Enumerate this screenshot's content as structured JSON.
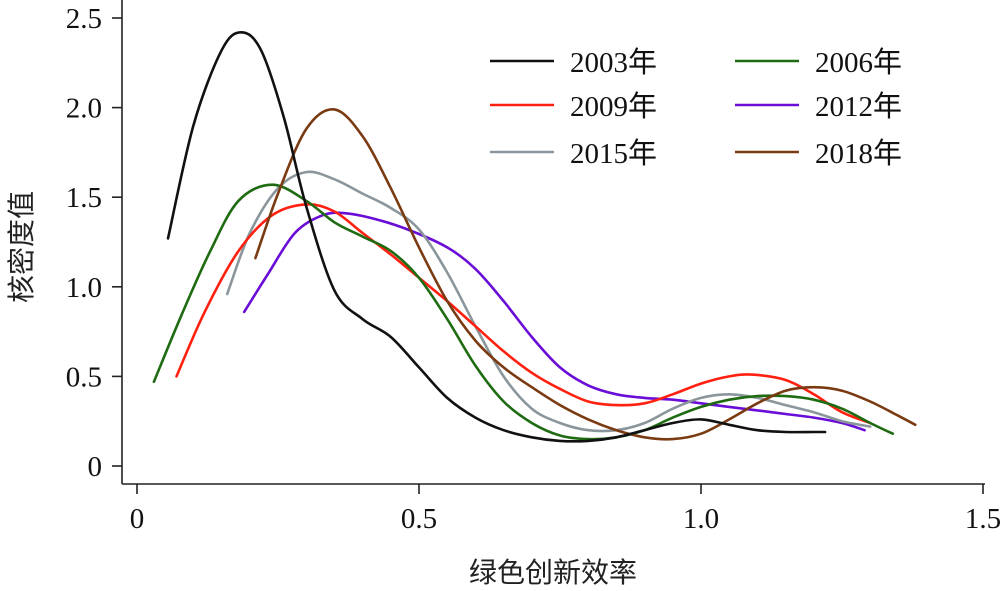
{
  "chart_data": {
    "type": "line",
    "title": "",
    "xlabel": "绿色创新效率",
    "ylabel": "核密度值",
    "xlim": [
      0,
      1.5
    ],
    "ylim": [
      0,
      2.5
    ],
    "xticks": [
      "0",
      "0.5",
      "1.0",
      "1.5"
    ],
    "yticks": [
      "0",
      "0.5",
      "1.0",
      "1.5",
      "2.0",
      "2.5"
    ],
    "grid": false,
    "legend": "top-right",
    "series": [
      {
        "name": "2003年",
        "color": "#111111",
        "x": [
          0.055,
          0.1,
          0.15,
          0.185,
          0.22,
          0.26,
          0.3,
          0.35,
          0.4,
          0.45,
          0.5,
          0.55,
          0.6,
          0.65,
          0.7,
          0.75,
          0.8,
          0.85,
          0.9,
          0.95,
          1.0,
          1.05,
          1.1,
          1.15,
          1.2,
          1.22
        ],
        "y": [
          1.27,
          1.9,
          2.32,
          2.42,
          2.32,
          1.95,
          1.45,
          0.98,
          0.82,
          0.72,
          0.55,
          0.38,
          0.27,
          0.2,
          0.16,
          0.14,
          0.14,
          0.16,
          0.2,
          0.24,
          0.26,
          0.23,
          0.2,
          0.19,
          0.19,
          0.19
        ]
      },
      {
        "name": "2006年",
        "color": "#1f6b12",
        "x": [
          0.03,
          0.08,
          0.13,
          0.18,
          0.24,
          0.3,
          0.35,
          0.4,
          0.45,
          0.5,
          0.55,
          0.6,
          0.65,
          0.7,
          0.75,
          0.8,
          0.85,
          0.9,
          0.95,
          1.0,
          1.05,
          1.1,
          1.15,
          1.2,
          1.25,
          1.3,
          1.34
        ],
        "y": [
          0.47,
          0.85,
          1.2,
          1.48,
          1.57,
          1.48,
          1.36,
          1.28,
          1.2,
          1.05,
          0.82,
          0.56,
          0.36,
          0.24,
          0.17,
          0.15,
          0.16,
          0.2,
          0.27,
          0.33,
          0.37,
          0.39,
          0.39,
          0.37,
          0.32,
          0.24,
          0.18
        ]
      },
      {
        "name": "2009年",
        "color": "#ff2010",
        "x": [
          0.07,
          0.12,
          0.18,
          0.24,
          0.3,
          0.35,
          0.4,
          0.45,
          0.5,
          0.55,
          0.6,
          0.65,
          0.7,
          0.75,
          0.8,
          0.85,
          0.9,
          0.95,
          1.0,
          1.05,
          1.09,
          1.15,
          1.2,
          1.25,
          1.3
        ],
        "y": [
          0.5,
          0.86,
          1.2,
          1.4,
          1.46,
          1.42,
          1.3,
          1.18,
          1.05,
          0.92,
          0.78,
          0.64,
          0.52,
          0.43,
          0.36,
          0.34,
          0.35,
          0.4,
          0.46,
          0.5,
          0.51,
          0.48,
          0.4,
          0.3,
          0.24
        ]
      },
      {
        "name": "2012年",
        "color": "#6a0dd6",
        "x": [
          0.19,
          0.23,
          0.28,
          0.33,
          0.37,
          0.42,
          0.48,
          0.55,
          0.6,
          0.65,
          0.7,
          0.75,
          0.8,
          0.85,
          0.9,
          0.95,
          1.0,
          1.05,
          1.1,
          1.15,
          1.2,
          1.25,
          1.29
        ],
        "y": [
          0.86,
          1.06,
          1.3,
          1.4,
          1.41,
          1.38,
          1.32,
          1.22,
          1.1,
          0.92,
          0.72,
          0.55,
          0.45,
          0.4,
          0.38,
          0.37,
          0.35,
          0.33,
          0.31,
          0.29,
          0.27,
          0.24,
          0.2
        ]
      },
      {
        "name": "2015年",
        "color": "#8a969c",
        "x": [
          0.16,
          0.2,
          0.25,
          0.3,
          0.35,
          0.4,
          0.45,
          0.5,
          0.55,
          0.6,
          0.65,
          0.7,
          0.75,
          0.8,
          0.85,
          0.9,
          0.95,
          1.0,
          1.05,
          1.1,
          1.15,
          1.2,
          1.25,
          1.3
        ],
        "y": [
          0.96,
          1.3,
          1.55,
          1.64,
          1.6,
          1.52,
          1.44,
          1.32,
          1.08,
          0.78,
          0.5,
          0.32,
          0.24,
          0.2,
          0.2,
          0.24,
          0.32,
          0.38,
          0.4,
          0.38,
          0.34,
          0.3,
          0.25,
          0.22
        ]
      },
      {
        "name": "2018年",
        "color": "#7a3a12",
        "x": [
          0.21,
          0.25,
          0.3,
          0.35,
          0.4,
          0.45,
          0.5,
          0.55,
          0.6,
          0.65,
          0.7,
          0.75,
          0.8,
          0.85,
          0.9,
          0.95,
          1.0,
          1.05,
          1.1,
          1.15,
          1.2,
          1.25,
          1.3,
          1.35,
          1.38
        ],
        "y": [
          1.16,
          1.52,
          1.88,
          1.99,
          1.84,
          1.55,
          1.22,
          0.92,
          0.7,
          0.55,
          0.44,
          0.34,
          0.26,
          0.2,
          0.16,
          0.15,
          0.18,
          0.26,
          0.35,
          0.42,
          0.44,
          0.42,
          0.36,
          0.28,
          0.23
        ]
      }
    ]
  }
}
